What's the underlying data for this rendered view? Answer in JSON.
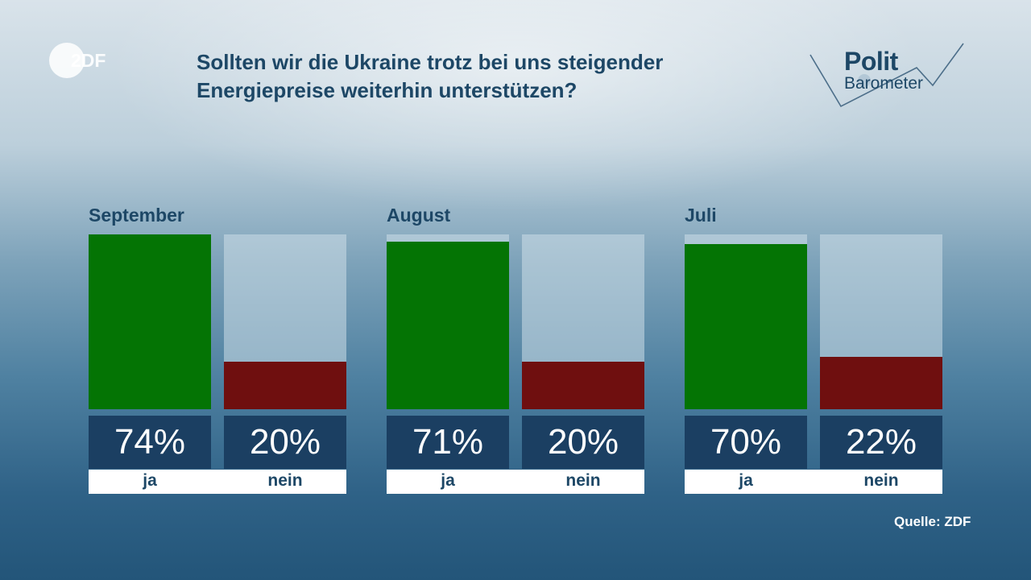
{
  "header": {
    "title_lines": [
      "Sollten wir die Ukraine trotz bei uns steigender",
      "Energiepreise weiterhin unterstützen?"
    ],
    "broadcaster_logo_text": "2DF",
    "brand_logo": {
      "top": "Polit",
      "bottom": "Barometer"
    }
  },
  "chart_data": {
    "type": "bar",
    "title": "Sollten wir die Ukraine trotz bei uns steigender Energiepreise weiterhin unterstützen?",
    "categories": [
      "ja",
      "nein"
    ],
    "ylim": [
      0,
      100
    ],
    "unit": "%",
    "groups": [
      {
        "name": "September",
        "values": [
          74,
          20
        ],
        "labels": [
          "74%",
          "20%"
        ]
      },
      {
        "name": "August",
        "values": [
          71,
          20
        ],
        "labels": [
          "71%",
          "20%"
        ]
      },
      {
        "name": "Juli",
        "values": [
          70,
          22
        ],
        "labels": [
          "70%",
          "22%"
        ]
      }
    ],
    "colors": {
      "ja": "#047404",
      "nein": "#6f0f0f"
    }
  },
  "source": "Quelle: ZDF"
}
